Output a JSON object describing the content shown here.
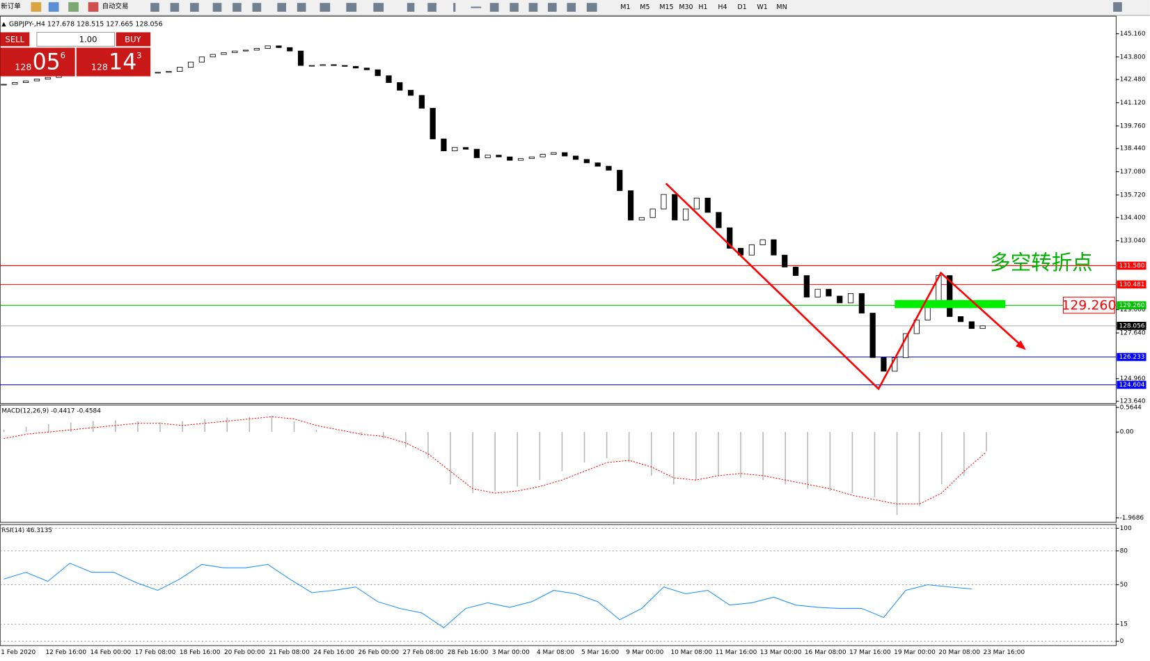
{
  "toolbar": {
    "new_order": "新订单",
    "auto_trade": "自动交易",
    "timeframes": [
      "M1",
      "M5",
      "M15",
      "M30",
      "H1",
      "H4",
      "D1",
      "W1",
      "MN"
    ]
  },
  "trade_panel": {
    "sell": "SELL",
    "buy": "BUY",
    "lots": "1.00",
    "sell_prefix": "128",
    "sell_big": "05",
    "sell_sup": "6",
    "buy_prefix": "128",
    "buy_big": "14",
    "buy_sup": "3"
  },
  "chart_data": [
    {
      "type": "candlestick",
      "title": "GBPJPY-,H4  127.678 128.515 127.665 128.056",
      "values": [
        142.2,
        142.3,
        142.4,
        142.5,
        142.6,
        142.7,
        142.8,
        142.9,
        143.0,
        143.0,
        143.05,
        143.0,
        142.95,
        142.9,
        142.9,
        142.95,
        143.2,
        143.5,
        143.8,
        143.95,
        144.05,
        144.15,
        144.2,
        144.3,
        144.45,
        144.35,
        144.15,
        143.3,
        143.3,
        143.35,
        143.3,
        143.25,
        143.15,
        143.05,
        142.7,
        142.3,
        141.85,
        141.55,
        140.8,
        139.0,
        138.3,
        138.5,
        138.4,
        137.9,
        138.05,
        137.95,
        137.75,
        137.85,
        137.95,
        138.1,
        138.2,
        138.0,
        137.8,
        137.6,
        137.4,
        137.17,
        135.97,
        134.25,
        134.4,
        134.9,
        135.75,
        134.25,
        134.9,
        135.54,
        134.7,
        133.8,
        132.6,
        132.2,
        132.8,
        133.1,
        132.2,
        131.5,
        131.0,
        129.74,
        130.2,
        129.8,
        129.4,
        129.95,
        128.8,
        126.2,
        125.4,
        126.2,
        127.6,
        128.4,
        129.3,
        131.0,
        128.6,
        128.3,
        127.9,
        128.056
      ],
      "ylim": [
        123.51,
        146.19
      ],
      "yticks": [
        {
          "value": 145.16,
          "label": "145.160"
        },
        {
          "value": 143.8,
          "label": "143.800"
        },
        {
          "value": 142.48,
          "label": "142.480"
        },
        {
          "value": 141.12,
          "label": "141.120"
        },
        {
          "value": 139.76,
          "label": "139.760"
        },
        {
          "value": 138.44,
          "label": "138.440"
        },
        {
          "value": 137.08,
          "label": "137.080"
        },
        {
          "value": 135.72,
          "label": "135.720"
        },
        {
          "value": 134.4,
          "label": "134.400"
        },
        {
          "value": 133.04,
          "label": "133.040"
        },
        {
          "value": 129.0,
          "label": "129.000"
        },
        {
          "value": 127.64,
          "label": "127.640"
        },
        {
          "value": 124.96,
          "label": "124.960"
        },
        {
          "value": 123.64,
          "label": "123.640"
        }
      ],
      "levels": [
        {
          "value": 131.58,
          "label": "131.580",
          "color": "#ff0000"
        },
        {
          "value": 130.481,
          "label": "130.481",
          "color": "#ff0000"
        },
        {
          "value": 129.26,
          "label": "129.260",
          "color": "#00c000"
        },
        {
          "value": 128.056,
          "label": "128.056",
          "color": "#000000"
        },
        {
          "value": 126.233,
          "label": "126.233",
          "color": "#0000ff"
        },
        {
          "value": 124.604,
          "label": "124.604",
          "color": "#0000ff"
        }
      ],
      "annotation": "多空转折点",
      "price_label": "129.260",
      "xlabels": [
        "1 Feb 2020",
        "12 Feb 16:00",
        "14 Feb 00:00",
        "17 Feb 08:00",
        "18 Feb 16:00",
        "20 Feb 00:00",
        "21 Feb 08:00",
        "24 Feb 16:00",
        "26 Feb 00:00",
        "27 Feb 08:00",
        "28 Feb 16:00",
        "3 Mar 00:00",
        "4 Mar 08:00",
        "5 Mar 16:00",
        "9 Mar 00:00",
        "10 Mar 08:00",
        "11 Mar 16:00",
        "13 Mar 00:00",
        "16 Mar 08:00",
        "17 Mar 16:00",
        "19 Mar 00:00",
        "20 Mar 08:00",
        "23 Mar 16:00"
      ]
    },
    {
      "type": "macd",
      "title": "MACD(12,26,9) -0.4417 -0.4584",
      "values": [
        0.05,
        0.12,
        0.18,
        0.22,
        0.25,
        0.27,
        0.25,
        0.22,
        0.25,
        0.3,
        0.33,
        0.35,
        0.38,
        0.25,
        0.05,
        -0.02,
        -0.08,
        -0.15,
        -0.35,
        -0.6,
        -1.2,
        -1.4,
        -1.35,
        -1.25,
        -1.1,
        -0.9,
        -0.7,
        -0.6,
        -0.7,
        -1.0,
        -1.2,
        -1.1,
        -1.0,
        -1.05,
        -1.1,
        -1.2,
        -1.3,
        -1.35,
        -1.4,
        -1.5,
        -1.9,
        -1.7,
        -1.2,
        -1.0,
        -0.4417
      ],
      "signal": [
        -0.15,
        -0.05,
        0.0,
        0.05,
        0.1,
        0.15,
        0.2,
        0.2,
        0.15,
        0.2,
        0.25,
        0.3,
        0.35,
        0.3,
        0.15,
        0.05,
        -0.05,
        -0.1,
        -0.25,
        -0.5,
        -0.9,
        -1.3,
        -1.4,
        -1.35,
        -1.25,
        -1.1,
        -0.9,
        -0.7,
        -0.65,
        -0.8,
        -1.05,
        -1.1,
        -1.0,
        -0.95,
        -1.0,
        -1.1,
        -1.2,
        -1.3,
        -1.45,
        -1.55,
        -1.65,
        -1.65,
        -1.4,
        -0.9,
        -0.4584
      ],
      "ylim": [
        -2.07,
        0.62
      ],
      "yticks": [
        0.5644,
        {
          "value": 0,
          "label": "0.00"
        },
        -1.9686
      ]
    },
    {
      "type": "line",
      "title": "RSI(14) 46.3135",
      "color": "#1e90ff",
      "values": [
        55,
        61,
        53,
        69,
        61,
        61,
        52,
        45,
        55,
        68,
        65,
        65,
        68,
        55,
        43,
        45,
        48,
        35,
        29,
        25,
        12,
        29,
        34,
        30,
        35,
        45,
        42,
        35,
        19,
        29,
        48,
        42,
        45,
        32,
        34,
        39,
        32,
        30,
        29,
        29,
        21,
        45,
        50,
        48,
        46.3135
      ],
      "ylim": [
        -3.9,
        103.3
      ],
      "yticks": [
        100,
        80,
        50,
        15,
        0
      ]
    }
  ]
}
